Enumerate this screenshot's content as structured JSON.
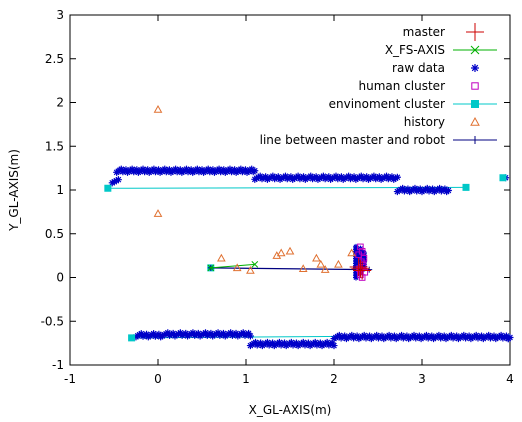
{
  "chart_data": {
    "type": "scatter",
    "xlabel": "X_GL-AXIS(m)",
    "ylabel": "Y_GL-AXIS(m)",
    "xlim": [
      -1,
      4
    ],
    "ylim": [
      -1,
      3
    ],
    "xticks": [
      -1,
      0,
      1,
      2,
      3,
      4
    ],
    "yticks": [
      -1,
      -0.5,
      0,
      0.5,
      1,
      1.5,
      2,
      2.5,
      3
    ],
    "xtick_labels": [
      "-1",
      "0",
      "1",
      "2",
      "3",
      "4"
    ],
    "ytick_labels": [
      "-1",
      "-0.5",
      "0",
      "0.5",
      "1",
      "1.5",
      "2",
      "2.5",
      "3"
    ],
    "grid": false,
    "legend_position": "top-right",
    "series": [
      {
        "name": "master",
        "marker": "plus",
        "color": "#cc0000",
        "x": [
          2.28,
          2.3,
          2.32
        ],
        "y": [
          0.12,
          0.1,
          0.08
        ]
      },
      {
        "name": "X_FS-AXIS",
        "marker": "x",
        "color": "#00b000",
        "line": true,
        "x": [
          0.6,
          1.1
        ],
        "y": [
          0.11,
          0.15
        ]
      },
      {
        "name": "raw data",
        "marker": "star",
        "color": "#0000c8",
        "clusters": [
          {
            "x_range": [
              -0.52,
              -0.45
            ],
            "y": 1.1,
            "n": 4
          },
          {
            "x_range": [
              -0.47,
              1.1
            ],
            "y": 1.22,
            "n": 90
          },
          {
            "x_range": [
              1.1,
              2.72
            ],
            "y": 1.14,
            "n": 80
          },
          {
            "x_range": [
              2.72,
              3.3
            ],
            "y": 1.0,
            "n": 30
          },
          {
            "x_range": [
              -0.25,
              0.05
            ],
            "y": -0.66,
            "n": 16
          },
          {
            "x_range": [
              0.05,
              1.05
            ],
            "y": -0.65,
            "n": 50
          },
          {
            "x_range": [
              1.05,
              2.0
            ],
            "y": -0.76,
            "n": 50
          },
          {
            "x_range": [
              2.0,
              4.0
            ],
            "y": -0.68,
            "n": 100
          }
        ],
        "vertical_clusters": [
          {
            "x": 2.25,
            "y_range": [
              0.0,
              0.35
            ],
            "n": 14
          },
          {
            "x": 2.3,
            "y_range": [
              0.05,
              0.33
            ],
            "n": 12
          },
          {
            "x": 2.34,
            "y_range": [
              0.1,
              0.28
            ],
            "n": 8
          }
        ],
        "points": [
          {
            "x": 3.95,
            "y": 1.14
          },
          {
            "x": 3.98,
            "y": -0.7
          }
        ]
      },
      {
        "name": "human cluster",
        "marker": "square-open",
        "color": "#c000c0",
        "x": [
          2.3,
          2.32,
          2.28,
          2.34,
          2.31,
          2.33,
          2.29,
          2.35,
          2.3,
          2.32,
          2.3
        ],
        "y": [
          0.35,
          0.3,
          0.26,
          0.22,
          0.18,
          0.14,
          0.1,
          0.06,
          0.03,
          0.0,
          0.08
        ]
      },
      {
        "name": "envinoment cluster",
        "marker": "square-filled",
        "color": "#00c8c8",
        "segments": [
          {
            "x": [
              -0.57,
              3.5
            ],
            "y": [
              1.02,
              1.03
            ]
          },
          {
            "x": [
              -0.3,
              4.0
            ],
            "y": [
              -0.69,
              -0.66
            ]
          },
          {
            "x": [
              0.6,
              0.62
            ],
            "y": [
              0.11,
              0.11
            ]
          }
        ],
        "x": [
          -0.57,
          3.5,
          3.92,
          -0.3,
          0.6
        ],
        "y": [
          1.02,
          1.03,
          1.14,
          -0.69,
          0.11
        ]
      },
      {
        "name": "history",
        "marker": "triangle-open",
        "color": "#e07030",
        "x": [
          0.0,
          0.0,
          0.72,
          0.9,
          1.05,
          1.35,
          1.4,
          1.5,
          1.65,
          1.8,
          1.85,
          1.9,
          2.05,
          2.2
        ],
        "y": [
          1.92,
          0.73,
          0.22,
          0.11,
          0.08,
          0.25,
          0.28,
          0.3,
          0.1,
          0.22,
          0.15,
          0.09,
          0.15,
          0.28
        ]
      },
      {
        "name": "line between master and robot",
        "marker": "plus",
        "color": "#000080",
        "line": true,
        "x": [
          0.6,
          2.4
        ],
        "y": [
          0.11,
          0.09
        ]
      }
    ]
  }
}
